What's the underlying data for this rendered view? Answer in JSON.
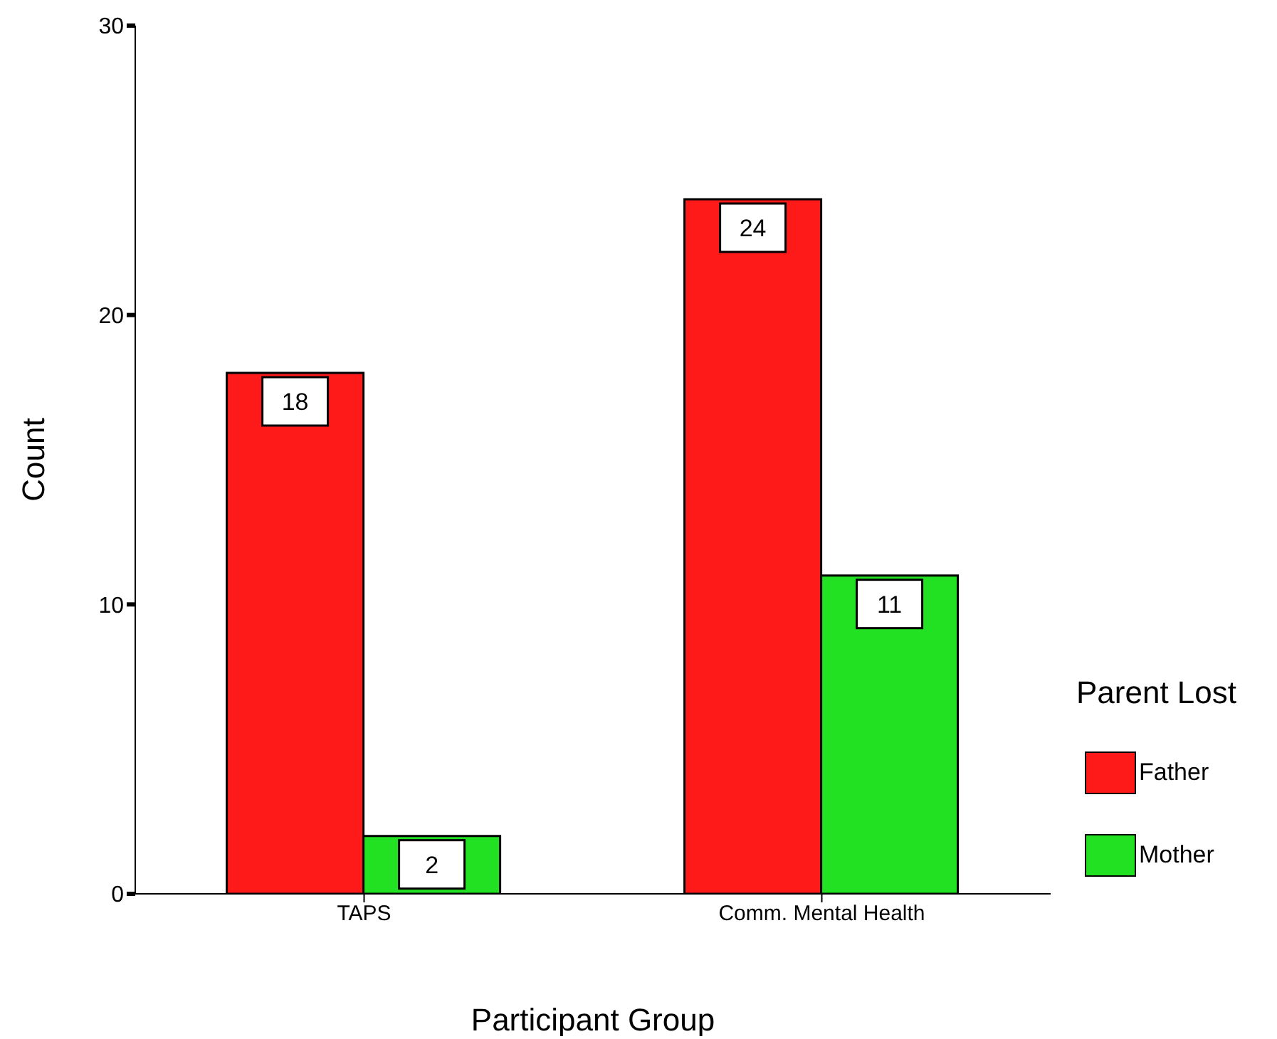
{
  "chart_data": {
    "type": "bar",
    "xlabel": "Participant Group",
    "ylabel": "Count",
    "legend_title": "Parent Lost",
    "categories": [
      "TAPS",
      "Comm. Mental Health"
    ],
    "series": [
      {
        "name": "Father",
        "color": "#ff1a1a",
        "values": [
          18,
          24
        ]
      },
      {
        "name": "Mother",
        "color": "#22e022",
        "values": [
          2,
          11
        ]
      }
    ],
    "ylim": [
      0,
      30
    ],
    "yticks": [
      0,
      10,
      20,
      30
    ],
    "grid": false,
    "legend": "right",
    "data_labels": true
  }
}
